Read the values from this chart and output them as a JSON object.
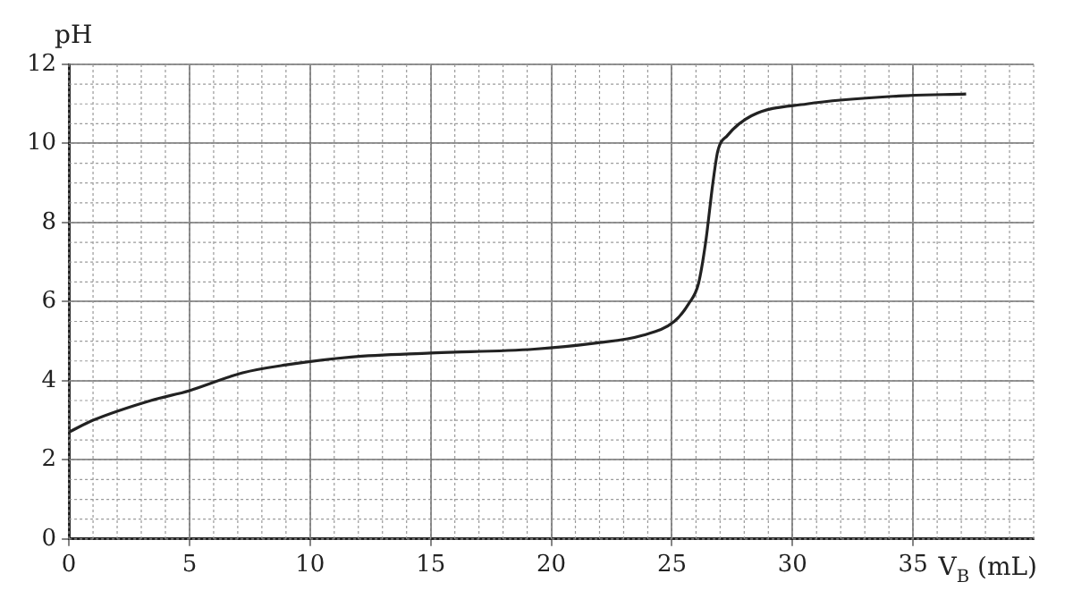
{
  "chart_data": {
    "type": "line",
    "xlabel": "V$_{B}$ (mL)",
    "ylabel": "pH",
    "series": [
      {
        "color": "#222222",
        "x": [
          0,
          1,
          3.4,
          5,
          7.2,
          9,
          11.7,
          15,
          19.3,
          21.8,
          23.8,
          25.1,
          25.7,
          26.1,
          26.4,
          26.7,
          26.9,
          27.3,
          28.3,
          30.6,
          34.4,
          37.2
        ],
        "values": [
          2.7,
          3.0,
          3.5,
          3.75,
          4.2,
          4.4,
          4.6,
          4.7,
          4.8,
          4.95,
          5.15,
          5.5,
          5.95,
          6.45,
          7.5,
          9.0,
          9.8,
          10.2,
          10.7,
          11.0,
          11.2,
          11.25
        ]
      }
    ],
    "xlim": [
      0,
      40
    ],
    "xticks": [
      0,
      5,
      10,
      15,
      20,
      25,
      30,
      35
    ],
    "ylim": [
      0,
      12
    ],
    "yticks": [
      0,
      2,
      4,
      6,
      8,
      10,
      12
    ],
    "grid": true,
    "legend": false,
    "marker": "none",
    "line_style": "solid"
  }
}
